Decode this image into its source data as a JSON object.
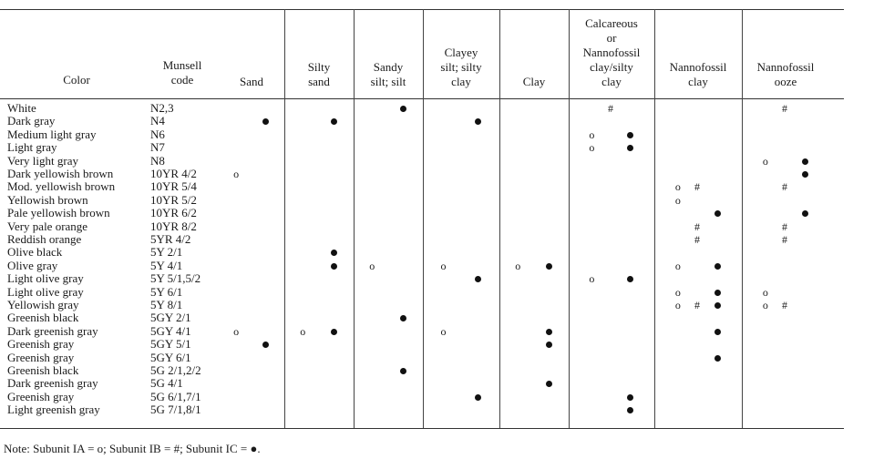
{
  "headers": {
    "color": "Color",
    "munsell": [
      "Munsell",
      "code"
    ],
    "columns": [
      [
        "Sand"
      ],
      [
        "Silty",
        "sand"
      ],
      [
        "Sandy",
        "silt; silt"
      ],
      [
        "Clayey",
        "silt; silty",
        "clay"
      ],
      [
        "Clay"
      ],
      [
        "Calcareous",
        "or",
        "Nannofossil",
        "clay/silty",
        "clay"
      ],
      [
        "Nannofossil",
        "clay"
      ],
      [
        "Nannofossil",
        "ooze"
      ]
    ]
  },
  "rows": [
    {
      "color": "White",
      "code": "N2,3",
      "cells": [
        "",
        "",
        "●",
        "",
        "",
        "#",
        "",
        "#"
      ]
    },
    {
      "color": "Dark gray",
      "code": "N4",
      "cells": [
        "●",
        "●",
        "",
        "●",
        "",
        "",
        "",
        ""
      ]
    },
    {
      "color": "Medium light gray",
      "code": "N6",
      "cells": [
        "",
        "",
        "",
        "",
        "",
        "o ●",
        "",
        ""
      ]
    },
    {
      "color": "Light gray",
      "code": "N7",
      "cells": [
        "",
        "",
        "",
        "",
        "",
        "o ●",
        "",
        ""
      ]
    },
    {
      "color": "Very light gray",
      "code": "N8",
      "cells": [
        "",
        "",
        "",
        "",
        "",
        "",
        "",
        "o ●"
      ]
    },
    {
      "color": "Dark yellowish brown",
      "code": "10YR 4/2",
      "cells": [
        "o",
        "",
        "",
        "",
        "",
        "",
        "",
        "●"
      ]
    },
    {
      "color": "Mod. yellowish brown",
      "code": "10YR 5/4",
      "cells": [
        "",
        "",
        "",
        "",
        "",
        "",
        "o #",
        "#"
      ]
    },
    {
      "color": "Yellowish brown",
      "code": "10YR 5/2",
      "cells": [
        "",
        "",
        "",
        "",
        "",
        "",
        "o",
        ""
      ]
    },
    {
      "color": "Pale yellowish brown",
      "code": "10YR 6/2",
      "cells": [
        "",
        "",
        "",
        "",
        "",
        "",
        "●",
        "●"
      ]
    },
    {
      "color": "Very pale orange",
      "code": "10YR 8/2",
      "cells": [
        "",
        "",
        "",
        "",
        "",
        "",
        "#",
        "#"
      ]
    },
    {
      "color": "Reddish orange",
      "code": "5YR 4/2",
      "cells": [
        "",
        "",
        "",
        "",
        "",
        "",
        "#",
        "#"
      ]
    },
    {
      "color": "Olive black",
      "code": "5Y 2/1",
      "cells": [
        "",
        "●",
        "",
        "",
        "",
        "",
        "",
        ""
      ]
    },
    {
      "color": "Olive gray",
      "code": "5Y 4/1",
      "cells": [
        "",
        "●",
        "o",
        "o",
        "o ●",
        "",
        "o ●",
        ""
      ]
    },
    {
      "color": "Light olive gray",
      "code": "5Y 5/1,5/2",
      "cells": [
        "",
        "",
        "",
        "●",
        "",
        "o ●",
        "",
        ""
      ]
    },
    {
      "color": "Light olive gray",
      "code": "5Y 6/1",
      "cells": [
        "",
        "",
        "",
        "",
        "",
        "",
        "o ●",
        "o"
      ]
    },
    {
      "color": "Yellowish gray",
      "code": "5Y 8/1",
      "cells": [
        "",
        "",
        "",
        "",
        "",
        "",
        "o # ●",
        "o #"
      ]
    },
    {
      "color": "Greenish black",
      "code": "5GY 2/1",
      "cells": [
        "",
        "",
        "●",
        "",
        "",
        "",
        "",
        ""
      ]
    },
    {
      "color": "Dark greenish gray",
      "code": "5GY 4/1",
      "cells": [
        "o",
        "o ●",
        "",
        "o",
        "●",
        "",
        "●",
        ""
      ]
    },
    {
      "color": "Greenish gray",
      "code": "5GY 5/1",
      "cells": [
        "●",
        "",
        "",
        "",
        "●",
        "",
        "",
        ""
      ]
    },
    {
      "color": "Greenish gray",
      "code": "5GY 6/1",
      "cells": [
        "",
        "",
        "",
        "",
        "",
        "",
        "●",
        ""
      ]
    },
    {
      "color": "Greenish black",
      "code": "5G 2/1,2/2",
      "cells": [
        "",
        "",
        "●",
        "",
        "",
        "",
        "",
        ""
      ]
    },
    {
      "color": "Dark greenish gray",
      "code": "5G 4/1",
      "cells": [
        "",
        "",
        "",
        "",
        "●",
        "",
        "",
        ""
      ]
    },
    {
      "color": "Greenish gray",
      "code": "5G 6/1,7/1",
      "cells": [
        "",
        "",
        "",
        "●",
        "",
        "●",
        "",
        ""
      ]
    },
    {
      "color": "Light greenish gray",
      "code": "5G 7/1,8/1",
      "cells": [
        "",
        "",
        "",
        "",
        "",
        "●",
        "",
        ""
      ]
    }
  ],
  "note": "Note: Subunit IA = o; Subunit IB = #; Subunit IC = ●."
}
